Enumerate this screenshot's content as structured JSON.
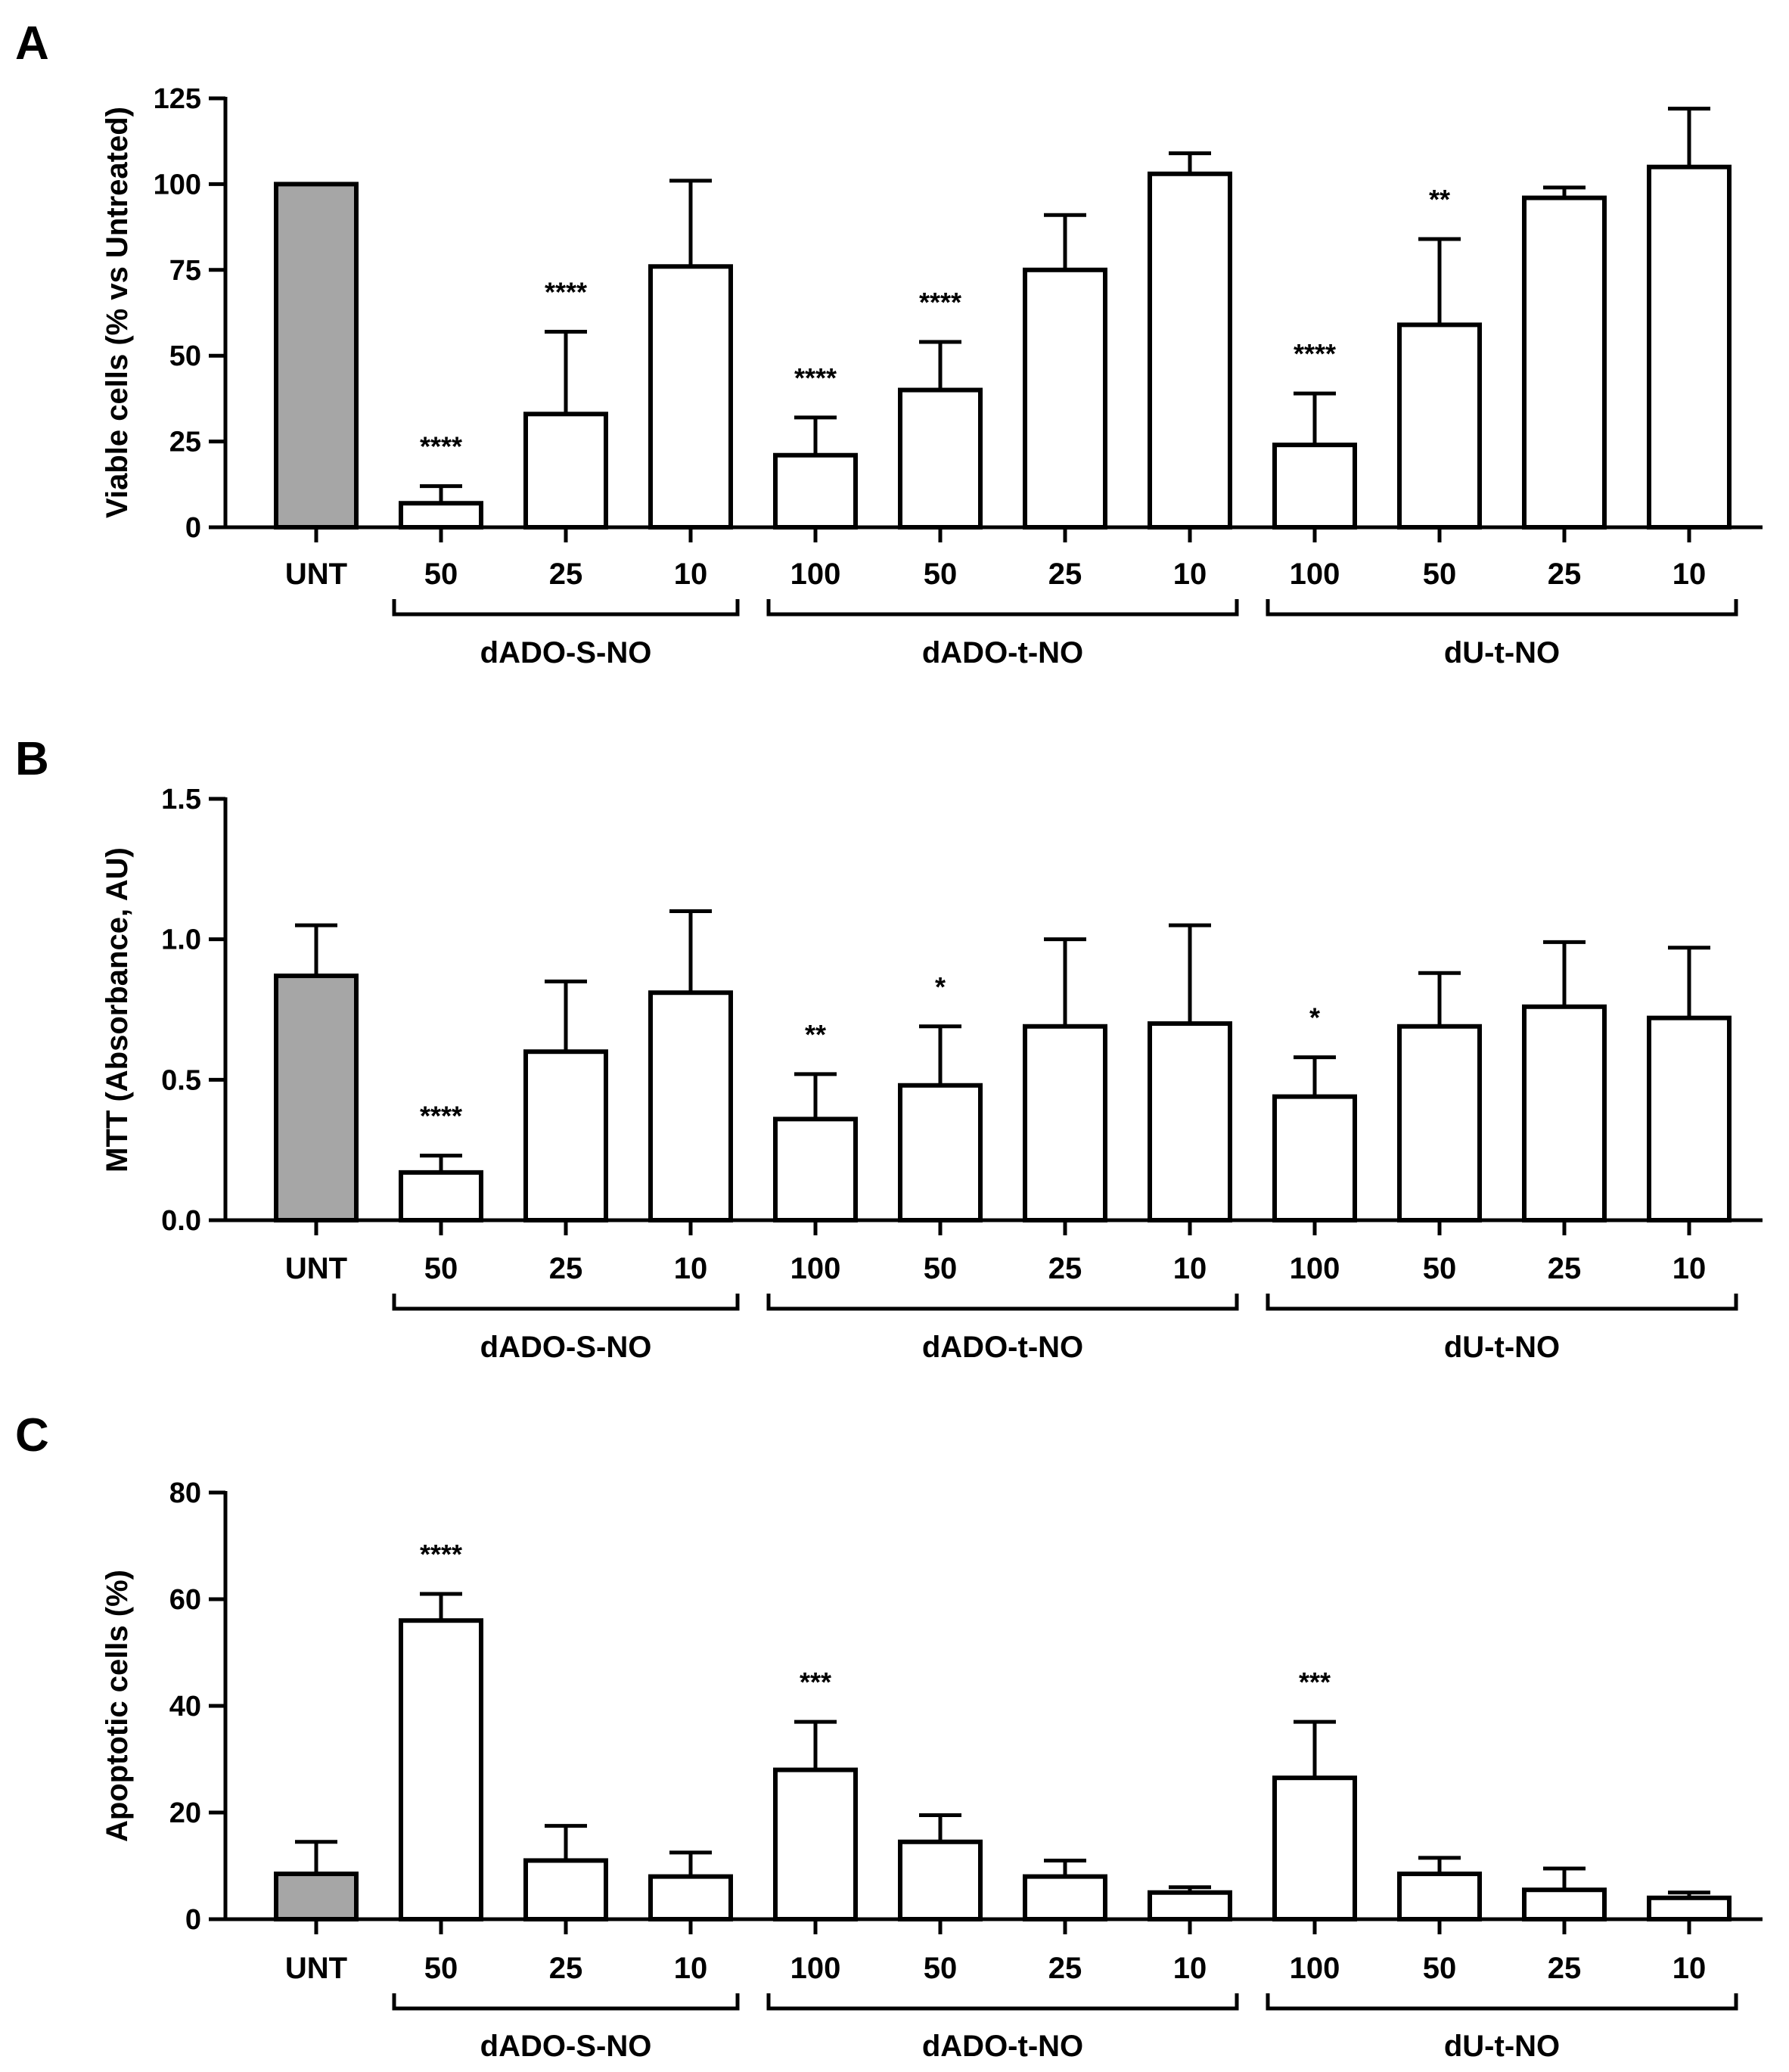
{
  "chart_data": [
    {
      "type": "bar",
      "panel": "A",
      "ylabel": "Viable cells (% vs Untreated)",
      "ylim": [
        0,
        125
      ],
      "yticks": [
        "0",
        "25",
        "50",
        "75",
        "100",
        "125"
      ],
      "categories": [
        "UNT",
        "50",
        "25",
        "10",
        "100",
        "50",
        "25",
        "10",
        "100",
        "50",
        "25",
        "10"
      ],
      "values": [
        100,
        7,
        33,
        76,
        21,
        40,
        75,
        103,
        24,
        59,
        96,
        105
      ],
      "errors": [
        0,
        5,
        24,
        25,
        11,
        14,
        16,
        6,
        15,
        25,
        3,
        17
      ],
      "significance": [
        "",
        "****",
        "****",
        "",
        "****",
        "****",
        "",
        "",
        "****",
        "**",
        "",
        ""
      ],
      "groups": [
        {
          "label": "dADO-S-NO",
          "start": 1,
          "end": 3
        },
        {
          "label": "dADO-t-NO",
          "start": 4,
          "end": 7
        },
        {
          "label": "dU-t-NO",
          "start": 8,
          "end": 11
        }
      ],
      "control_color": "#a6a6a6"
    },
    {
      "type": "bar",
      "panel": "B",
      "ylabel": "MTT (Absorbance, AU)",
      "ylim": [
        0,
        1.5
      ],
      "yticks": [
        "0.0",
        "0.5",
        "1.0",
        "1.5"
      ],
      "categories": [
        "UNT",
        "50",
        "25",
        "10",
        "100",
        "50",
        "25",
        "10",
        "100",
        "50",
        "25",
        "10"
      ],
      "values": [
        0.87,
        0.17,
        0.6,
        0.81,
        0.36,
        0.48,
        0.69,
        0.7,
        0.44,
        0.69,
        0.76,
        0.72
      ],
      "errors": [
        0.18,
        0.06,
        0.25,
        0.29,
        0.16,
        0.21,
        0.31,
        0.35,
        0.14,
        0.19,
        0.23,
        0.25
      ],
      "significance": [
        "",
        "****",
        "",
        "",
        "**",
        "*",
        "",
        "",
        "*",
        "",
        "",
        ""
      ],
      "groups": [
        {
          "label": "dADO-S-NO",
          "start": 1,
          "end": 3
        },
        {
          "label": "dADO-t-NO",
          "start": 4,
          "end": 7
        },
        {
          "label": "dU-t-NO",
          "start": 8,
          "end": 11
        }
      ],
      "control_color": "#a6a6a6"
    },
    {
      "type": "bar",
      "panel": "C",
      "ylabel": "Apoptotic cells (%)",
      "ylim": [
        0,
        80
      ],
      "yticks": [
        "0",
        "20",
        "40",
        "60",
        "80"
      ],
      "categories": [
        "UNT",
        "50",
        "25",
        "10",
        "100",
        "50",
        "25",
        "10",
        "100",
        "50",
        "25",
        "10"
      ],
      "values": [
        8.5,
        56,
        11,
        8,
        28,
        14.5,
        8,
        5,
        26.5,
        8.5,
        5.5,
        4
      ],
      "errors": [
        6,
        5,
        6.5,
        4.5,
        9,
        5,
        3,
        1,
        10.5,
        3,
        4,
        1
      ],
      "significance": [
        "",
        "****",
        "",
        "",
        "***",
        "",
        "",
        "",
        "***",
        "",
        "",
        ""
      ],
      "groups": [
        {
          "label": "dADO-S-NO",
          "start": 1,
          "end": 3
        },
        {
          "label": "dADO-t-NO",
          "start": 4,
          "end": 7
        },
        {
          "label": "dU-t-NO",
          "start": 8,
          "end": 11
        }
      ],
      "control_color": "#a6a6a6"
    }
  ]
}
